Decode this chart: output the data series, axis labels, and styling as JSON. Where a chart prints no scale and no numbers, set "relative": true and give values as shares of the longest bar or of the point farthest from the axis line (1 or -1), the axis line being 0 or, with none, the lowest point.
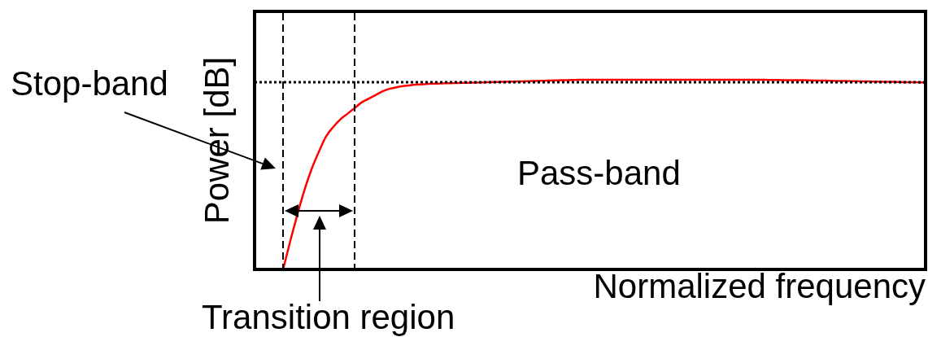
{
  "chart_data": {
    "type": "line",
    "relative": true,
    "xlabel": "Normalized frequency",
    "ylabel": "Power [dB]",
    "categories": [
      null,
      null,
      null,
      null,
      null,
      null,
      null,
      null,
      null,
      null,
      null,
      null,
      null,
      null,
      null,
      null,
      null,
      null,
      null,
      null,
      null,
      null,
      null,
      null,
      null,
      null,
      null,
      null,
      null,
      null,
      null,
      null,
      null,
      null,
      null,
      null,
      null,
      null,
      null,
      null,
      null,
      null,
      null,
      null,
      null,
      null,
      null,
      null,
      null,
      null,
      null,
      null,
      null,
      null,
      null,
      null,
      null,
      null,
      null,
      null,
      null,
      null,
      null,
      null,
      null,
      null,
      null,
      null,
      null,
      null,
      null,
      null,
      null,
      null,
      null,
      null,
      null,
      null,
      null,
      null,
      null,
      null,
      null,
      null,
      null,
      null,
      null,
      null,
      null,
      null,
      null,
      null,
      null,
      null,
      null
    ],
    "values": [
      null,
      null,
      null,
      null,
      0,
      0.15,
      0.29,
      0.42,
      0.53,
      0.62,
      0.7,
      0.75,
      0.79,
      0.82,
      0.85,
      0.88,
      0.9,
      0.92,
      0.94,
      0.953,
      0.961,
      0.967,
      0.972,
      0.975,
      0.977,
      0.979,
      0.98,
      0.981,
      0.982,
      0.983,
      0.984,
      0.985,
      0.986,
      0.987,
      0.988,
      0.989,
      0.99,
      0.991,
      0.992,
      0.993,
      0.994,
      0.995,
      0.996,
      0.997,
      0.998,
      0.999,
      1,
      1,
      1,
      1,
      1,
      1,
      1,
      1,
      1,
      1,
      1,
      1,
      1,
      1,
      1,
      1,
      1,
      1,
      1,
      1,
      1,
      1,
      1,
      1,
      1,
      1,
      0.999,
      0.999,
      0.998,
      0.998,
      0.997,
      0.997,
      0.996,
      0.995,
      0.995,
      0.994,
      0.993,
      0.993,
      0.992,
      0.991,
      0.991,
      0.99,
      0.989,
      0.989,
      0.988,
      0.987,
      0.987,
      0.986,
      0.985
    ],
    "color": "#ff0000",
    "ref_lines": [
      {
        "axis": "y",
        "value": 0.987,
        "color": "#000000",
        "line_style": "dotted"
      }
    ],
    "annotations": [
      "Stop-band",
      "Pass-band",
      "Transition region"
    ]
  }
}
